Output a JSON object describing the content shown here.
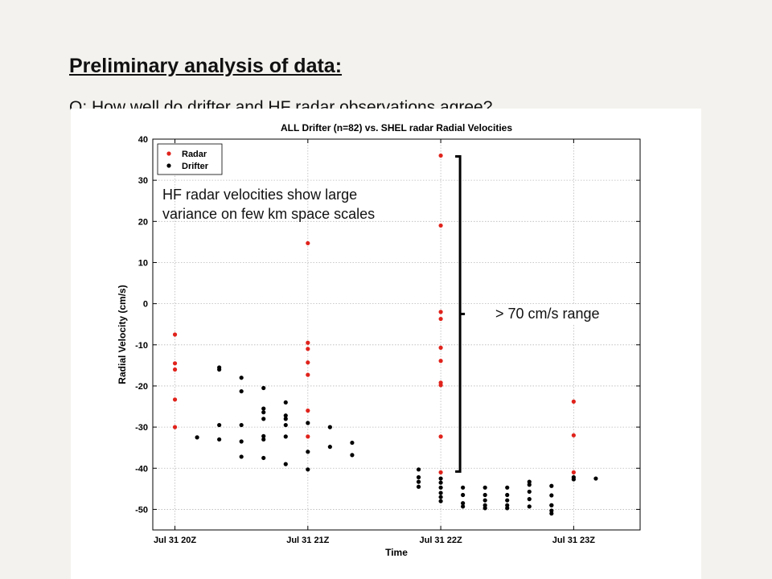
{
  "slide": {
    "heading": "Preliminary analysis of data:",
    "question": "Q: How well do drifter and HF radar observations agree?"
  },
  "annotations": {
    "variance_line1": "HF radar velocities show large",
    "variance_line2": "variance on few km space scales",
    "range": "> 70 cm/s range"
  },
  "chart_data": {
    "type": "scatter",
    "title": "ALL Drifter (n=82) vs. SHEL radar Radial Velocities",
    "xlabel": "Time",
    "ylabel": "Radial Velocity (cm/s)",
    "ylim": [
      -55,
      40
    ],
    "xlim": [
      "Jul 31 19:50Z",
      "Jul 31 23:30Z"
    ],
    "yticks": [
      40,
      30,
      20,
      10,
      0,
      -10,
      -20,
      -30,
      -40,
      -50
    ],
    "xticks": [
      "Jul 31 20Z",
      "Jul 31 21Z",
      "Jul 31 22Z",
      "Jul 31 23Z"
    ],
    "grid": true,
    "legend_position": "top-left",
    "series": [
      {
        "name": "Radar",
        "color": "#e0231c",
        "points": [
          [
            "Jul 31 20:00Z",
            -7.5
          ],
          [
            "Jul 31 20:00Z",
            -14.5
          ],
          [
            "Jul 31 20:00Z",
            -16
          ],
          [
            "Jul 31 20:00Z",
            -23.3
          ],
          [
            "Jul 31 20:00Z",
            -30
          ],
          [
            "Jul 31 21:00Z",
            14.7
          ],
          [
            "Jul 31 21:00Z",
            -9.5
          ],
          [
            "Jul 31 21:00Z",
            -11
          ],
          [
            "Jul 31 21:00Z",
            -14.3
          ],
          [
            "Jul 31 21:00Z",
            -17.3
          ],
          [
            "Jul 31 21:00Z",
            -26
          ],
          [
            "Jul 31 21:00Z",
            -32.3
          ],
          [
            "Jul 31 22:00Z",
            36
          ],
          [
            "Jul 31 22:00Z",
            19
          ],
          [
            "Jul 31 22:00Z",
            -2
          ],
          [
            "Jul 31 22:00Z",
            -3.7
          ],
          [
            "Jul 31 22:00Z",
            -10.7
          ],
          [
            "Jul 31 22:00Z",
            -13.9
          ],
          [
            "Jul 31 22:00Z",
            -19.2
          ],
          [
            "Jul 31 22:00Z",
            -19.8
          ],
          [
            "Jul 31 22:00Z",
            -32.3
          ],
          [
            "Jul 31 22:00Z",
            -41
          ],
          [
            "Jul 31 23:00Z",
            -23.8
          ],
          [
            "Jul 31 23:00Z",
            -32
          ],
          [
            "Jul 31 23:00Z",
            -41
          ]
        ]
      },
      {
        "name": "Drifter",
        "color": "#000000",
        "points": [
          [
            "Jul 31 20:10Z",
            -32.5
          ],
          [
            "Jul 31 20:20Z",
            -15.5
          ],
          [
            "Jul 31 20:20Z",
            -16
          ],
          [
            "Jul 31 20:20Z",
            -29.5
          ],
          [
            "Jul 31 20:20Z",
            -33
          ],
          [
            "Jul 31 20:30Z",
            -18
          ],
          [
            "Jul 31 20:30Z",
            -21.3
          ],
          [
            "Jul 31 20:30Z",
            -29.5
          ],
          [
            "Jul 31 20:30Z",
            -33.5
          ],
          [
            "Jul 31 20:30Z",
            -37.2
          ],
          [
            "Jul 31 20:40Z",
            -20.5
          ],
          [
            "Jul 31 20:40Z",
            -25.5
          ],
          [
            "Jul 31 20:40Z",
            -26.4
          ],
          [
            "Jul 31 20:40Z",
            -28
          ],
          [
            "Jul 31 20:40Z",
            -32.2
          ],
          [
            "Jul 31 20:40Z",
            -33
          ],
          [
            "Jul 31 20:40Z",
            -37.5
          ],
          [
            "Jul 31 20:50Z",
            -24
          ],
          [
            "Jul 31 20:50Z",
            -27.2
          ],
          [
            "Jul 31 20:50Z",
            -28
          ],
          [
            "Jul 31 20:50Z",
            -29.5
          ],
          [
            "Jul 31 20:50Z",
            -32.3
          ],
          [
            "Jul 31 20:50Z",
            -39
          ],
          [
            "Jul 31 21:00Z",
            -29
          ],
          [
            "Jul 31 21:00Z",
            -36
          ],
          [
            "Jul 31 21:00Z",
            -40.3
          ],
          [
            "Jul 31 21:10Z",
            -30
          ],
          [
            "Jul 31 21:10Z",
            -34.8
          ],
          [
            "Jul 31 21:20Z",
            -33.8
          ],
          [
            "Jul 31 21:20Z",
            -36.8
          ],
          [
            "Jul 31 21:50Z",
            -40.3
          ],
          [
            "Jul 31 21:50Z",
            -42.2
          ],
          [
            "Jul 31 21:50Z",
            -43.3
          ],
          [
            "Jul 31 21:50Z",
            -44.5
          ],
          [
            "Jul 31 22:00Z",
            -42.5
          ],
          [
            "Jul 31 22:00Z",
            -43.5
          ],
          [
            "Jul 31 22:00Z",
            -44.7
          ],
          [
            "Jul 31 22:00Z",
            -46
          ],
          [
            "Jul 31 22:00Z",
            -47
          ],
          [
            "Jul 31 22:00Z",
            -48
          ],
          [
            "Jul 31 22:10Z",
            -44.7
          ],
          [
            "Jul 31 22:10Z",
            -46.5
          ],
          [
            "Jul 31 22:10Z",
            -48.5
          ],
          [
            "Jul 31 22:10Z",
            -49.3
          ],
          [
            "Jul 31 22:20Z",
            -44.7
          ],
          [
            "Jul 31 22:20Z",
            -46.5
          ],
          [
            "Jul 31 22:20Z",
            -47.8
          ],
          [
            "Jul 31 22:20Z",
            -49
          ],
          [
            "Jul 31 22:20Z",
            -49.7
          ],
          [
            "Jul 31 22:30Z",
            -44.7
          ],
          [
            "Jul 31 22:30Z",
            -46.5
          ],
          [
            "Jul 31 22:30Z",
            -47.8
          ],
          [
            "Jul 31 22:30Z",
            -49
          ],
          [
            "Jul 31 22:30Z",
            -49.7
          ],
          [
            "Jul 31 22:40Z",
            -43.3
          ],
          [
            "Jul 31 22:40Z",
            -44
          ],
          [
            "Jul 31 22:40Z",
            -45.7
          ],
          [
            "Jul 31 22:40Z",
            -47.5
          ],
          [
            "Jul 31 22:40Z",
            -49.3
          ],
          [
            "Jul 31 22:50Z",
            -46.6
          ],
          [
            "Jul 31 22:50Z",
            -49
          ],
          [
            "Jul 31 22:50Z",
            -50.3
          ],
          [
            "Jul 31 22:50Z",
            -51
          ],
          [
            "Jul 31 23:00Z",
            -42.2
          ],
          [
            "Jul 31 23:00Z",
            -42.7
          ],
          [
            "Jul 31 23:10Z",
            -42.5
          ],
          [
            "Jul 31 22:50Z",
            -44.3
          ],
          [
            "Jul 31 22:50Z",
            -49
          ]
        ]
      }
    ]
  }
}
